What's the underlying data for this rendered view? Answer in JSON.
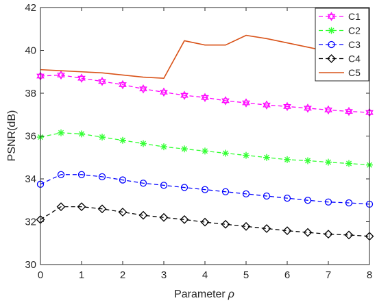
{
  "chart_data": {
    "type": "line",
    "xlabel": "Parameter",
    "xlabel_symbol": "ρ",
    "ylabel": "PSNR(dB)",
    "xlim": [
      0,
      8
    ],
    "ylim": [
      30,
      42
    ],
    "xticks": [
      0,
      1,
      2,
      3,
      4,
      5,
      6,
      7,
      8
    ],
    "yticks": [
      30,
      32,
      34,
      36,
      38,
      40,
      42
    ],
    "grid": false,
    "legend_position": "top-right",
    "series": [
      {
        "name": "C1",
        "color": "#ff00ff",
        "style": "dashed",
        "marker": "hexagram",
        "x": [
          0,
          0.5,
          1,
          1.5,
          2,
          2.5,
          3,
          3.5,
          4,
          4.5,
          5,
          5.5,
          6,
          6.5,
          7,
          7.5,
          8
        ],
        "y": [
          38.8,
          38.85,
          38.7,
          38.55,
          38.4,
          38.2,
          38.05,
          37.9,
          37.8,
          37.65,
          37.55,
          37.45,
          37.38,
          37.3,
          37.22,
          37.15,
          37.1
        ]
      },
      {
        "name": "C2",
        "color": "#33ff33",
        "style": "dashed",
        "marker": "asterisk",
        "x": [
          0,
          0.5,
          1,
          1.5,
          2,
          2.5,
          3,
          3.5,
          4,
          4.5,
          5,
          5.5,
          6,
          6.5,
          7,
          7.5,
          8
        ],
        "y": [
          35.95,
          36.15,
          36.1,
          35.95,
          35.8,
          35.65,
          35.5,
          35.4,
          35.3,
          35.2,
          35.1,
          35.0,
          34.9,
          34.85,
          34.78,
          34.72,
          34.65
        ]
      },
      {
        "name": "C3",
        "color": "#0000ff",
        "style": "dashed",
        "marker": "circle",
        "x": [
          0,
          0.5,
          1,
          1.5,
          2,
          2.5,
          3,
          3.5,
          4,
          4.5,
          5,
          5.5,
          6,
          6.5,
          7,
          7.5,
          8
        ],
        "y": [
          33.75,
          34.2,
          34.2,
          34.1,
          33.95,
          33.8,
          33.7,
          33.6,
          33.5,
          33.4,
          33.3,
          33.2,
          33.1,
          33.0,
          32.92,
          32.88,
          32.82
        ]
      },
      {
        "name": "C4",
        "color": "#000000",
        "style": "dashed",
        "marker": "diamond",
        "x": [
          0,
          0.5,
          1,
          1.5,
          2,
          2.5,
          3,
          3.5,
          4,
          4.5,
          5,
          5.5,
          6,
          6.5,
          7,
          7.5,
          8
        ],
        "y": [
          32.1,
          32.7,
          32.7,
          32.6,
          32.45,
          32.3,
          32.2,
          32.1,
          31.98,
          31.88,
          31.78,
          31.68,
          31.58,
          31.5,
          31.42,
          31.38,
          31.32
        ]
      },
      {
        "name": "C5",
        "color": "#d95319",
        "style": "solid",
        "marker": "none",
        "x": [
          0,
          0.5,
          1,
          1.5,
          2,
          2.5,
          3,
          3.5,
          4,
          4.5,
          5,
          5.5,
          6,
          6.5,
          7,
          7.5,
          8
        ],
        "y": [
          39.1,
          39.05,
          39.0,
          38.95,
          38.85,
          38.75,
          38.7,
          40.45,
          40.25,
          40.25,
          40.7,
          40.55,
          40.35,
          40.15,
          39.95,
          39.85,
          39.75
        ]
      }
    ]
  }
}
